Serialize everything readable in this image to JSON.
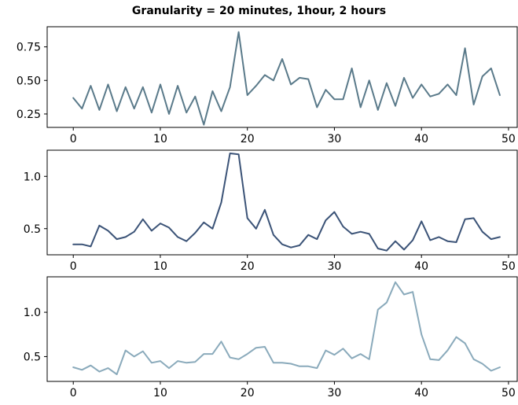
{
  "title": "Granularity = 20 minutes, 1hour, 2 hours",
  "chart_data": [
    {
      "type": "line",
      "title": "",
      "xlabel": "",
      "ylabel": "",
      "color": "#5a7a8a",
      "xlim": [
        -3,
        51
      ],
      "ylim": [
        0.15,
        0.9
      ],
      "x_ticks": [
        0,
        10,
        20,
        30,
        40,
        50
      ],
      "y_ticks": [
        0.25,
        0.5,
        0.75
      ],
      "y_tick_labels": [
        "0.25",
        "0.50",
        "0.75"
      ],
      "x": [
        0,
        1,
        2,
        3,
        4,
        5,
        6,
        7,
        8,
        9,
        10,
        11,
        12,
        13,
        14,
        15,
        16,
        17,
        18,
        19,
        20,
        21,
        22,
        23,
        24,
        25,
        26,
        27,
        28,
        29,
        30,
        31,
        32,
        33,
        34,
        35,
        36,
        37,
        38,
        39,
        40,
        41,
        42,
        43,
        44,
        45,
        46,
        47,
        48,
        49
      ],
      "values": [
        0.37,
        0.29,
        0.46,
        0.28,
        0.47,
        0.27,
        0.45,
        0.29,
        0.45,
        0.26,
        0.47,
        0.25,
        0.46,
        0.26,
        0.38,
        0.17,
        0.42,
        0.27,
        0.45,
        0.86,
        0.39,
        0.46,
        0.54,
        0.5,
        0.66,
        0.47,
        0.52,
        0.51,
        0.3,
        0.43,
        0.36,
        0.36,
        0.59,
        0.3,
        0.5,
        0.28,
        0.48,
        0.31,
        0.52,
        0.37,
        0.47,
        0.38,
        0.4,
        0.47,
        0.39,
        0.74,
        0.32,
        0.53,
        0.59,
        0.39
      ]
    },
    {
      "type": "line",
      "title": "",
      "xlabel": "",
      "ylabel": "",
      "color": "#3b5377",
      "xlim": [
        -3,
        51
      ],
      "ylim": [
        0.25,
        1.25
      ],
      "x_ticks": [
        0,
        10,
        20,
        30,
        40,
        50
      ],
      "y_ticks": [
        0.5,
        1.0
      ],
      "y_tick_labels": [
        "0.5",
        "1.0"
      ],
      "x": [
        0,
        1,
        2,
        3,
        4,
        5,
        6,
        7,
        8,
        9,
        10,
        11,
        12,
        13,
        14,
        15,
        16,
        17,
        18,
        19,
        20,
        21,
        22,
        23,
        24,
        25,
        26,
        27,
        28,
        29,
        30,
        31,
        32,
        33,
        34,
        35,
        36,
        37,
        38,
        39,
        40,
        41,
        42,
        43,
        44,
        45,
        46,
        47,
        48,
        49
      ],
      "values": [
        0.35,
        0.35,
        0.33,
        0.53,
        0.48,
        0.4,
        0.42,
        0.47,
        0.59,
        0.48,
        0.55,
        0.51,
        0.42,
        0.38,
        0.46,
        0.56,
        0.5,
        0.75,
        1.22,
        1.21,
        0.6,
        0.5,
        0.68,
        0.44,
        0.35,
        0.32,
        0.34,
        0.44,
        0.4,
        0.58,
        0.66,
        0.52,
        0.45,
        0.47,
        0.45,
        0.31,
        0.29,
        0.38,
        0.3,
        0.39,
        0.57,
        0.39,
        0.42,
        0.38,
        0.37,
        0.59,
        0.6,
        0.47,
        0.4,
        0.42
      ]
    },
    {
      "type": "line",
      "title": "",
      "xlabel": "",
      "ylabel": "",
      "color": "#8aaabb",
      "xlim": [
        -3,
        51
      ],
      "ylim": [
        0.22,
        1.4
      ],
      "x_ticks": [
        0,
        10,
        20,
        30,
        40,
        50
      ],
      "y_ticks": [
        0.5,
        1.0
      ],
      "y_tick_labels": [
        "0.5",
        "1.0"
      ],
      "x": [
        0,
        1,
        2,
        3,
        4,
        5,
        6,
        7,
        8,
        9,
        10,
        11,
        12,
        13,
        14,
        15,
        16,
        17,
        18,
        19,
        20,
        21,
        22,
        23,
        24,
        25,
        26,
        27,
        28,
        29,
        30,
        31,
        32,
        33,
        34,
        35,
        36,
        37,
        38,
        39,
        40,
        41,
        42,
        43,
        44,
        45,
        46,
        47,
        48,
        49
      ],
      "values": [
        0.38,
        0.35,
        0.4,
        0.33,
        0.37,
        0.3,
        0.57,
        0.5,
        0.56,
        0.43,
        0.45,
        0.37,
        0.45,
        0.43,
        0.44,
        0.53,
        0.53,
        0.67,
        0.49,
        0.47,
        0.53,
        0.6,
        0.61,
        0.43,
        0.43,
        0.42,
        0.39,
        0.39,
        0.37,
        0.57,
        0.52,
        0.59,
        0.48,
        0.53,
        0.47,
        1.03,
        1.11,
        1.34,
        1.2,
        1.23,
        0.75,
        0.47,
        0.46,
        0.57,
        0.72,
        0.65,
        0.47,
        0.42,
        0.34,
        0.38
      ]
    }
  ]
}
